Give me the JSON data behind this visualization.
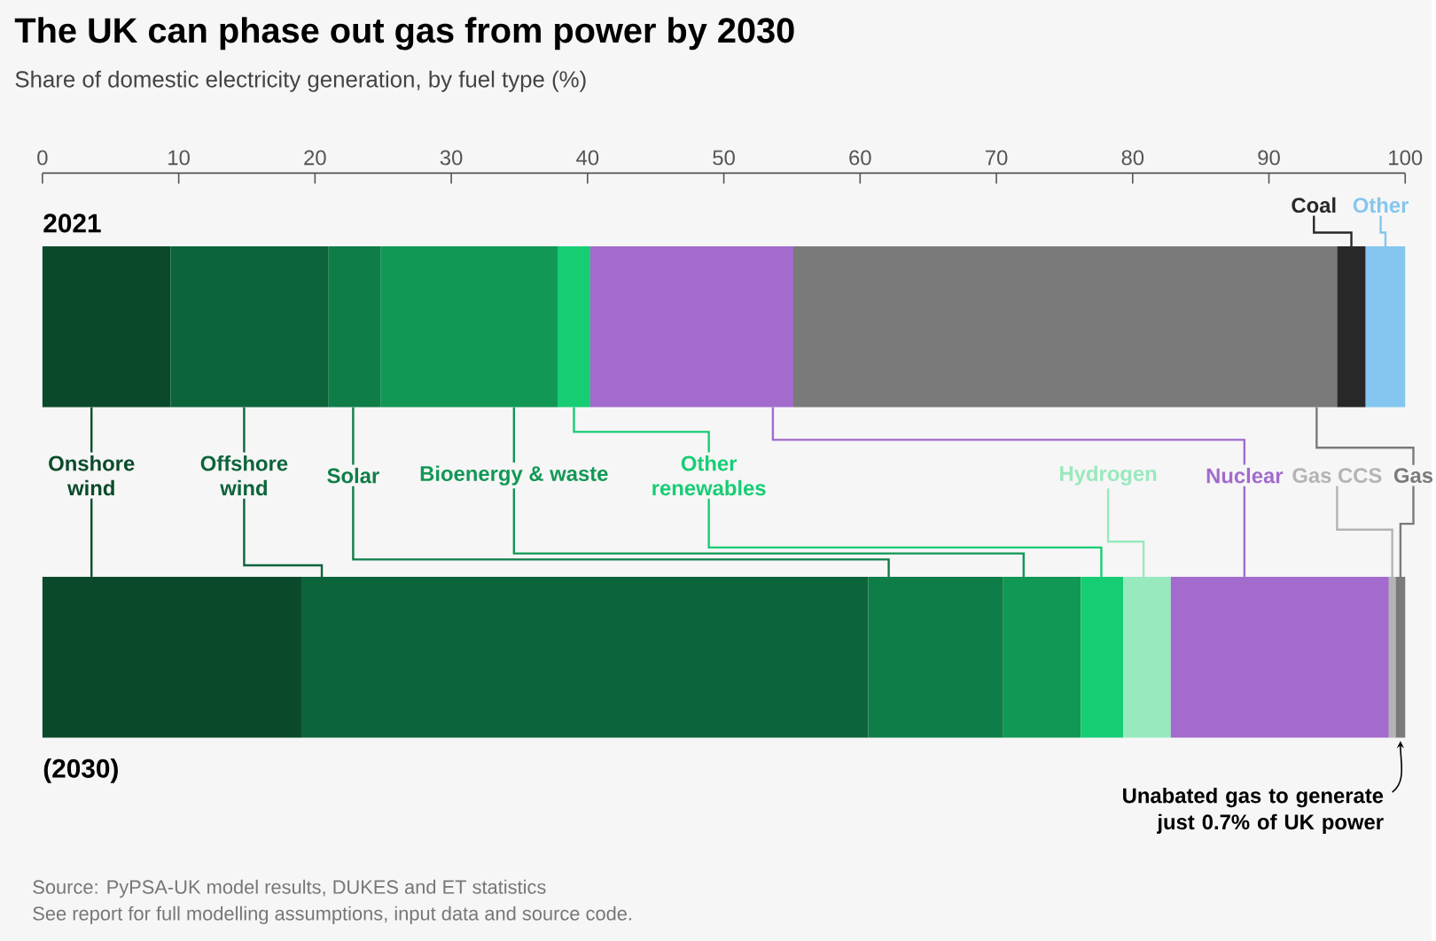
{
  "chart_data": {
    "type": "bar",
    "orientation": "horizontal",
    "stacked": true,
    "title": "The UK can phase out gas from power by 2030",
    "subtitle": "Share of domestic electricity generation, by fuel type (%)",
    "categories": [
      "2021",
      "(2030)"
    ],
    "legend": "center",
    "xlim": [
      0,
      100
    ],
    "xticks": [
      0,
      10,
      20,
      30,
      40,
      50,
      60,
      70,
      80,
      90,
      100
    ],
    "series": [
      {
        "name": "Onshore wind",
        "color": "#0a4a2a",
        "values": [
          9.4,
          19.0
        ]
      },
      {
        "name": "Offshore wind",
        "color": "#0c643a",
        "values": [
          11.6,
          41.6
        ]
      },
      {
        "name": "Solar",
        "color": "#0e7d48",
        "values": [
          3.8,
          9.9
        ]
      },
      {
        "name": "Bioenergy & waste",
        "color": "#119855",
        "values": [
          13.0,
          5.7
        ]
      },
      {
        "name": "Other renewables",
        "color": "#16cd74",
        "values": [
          2.4,
          3.1
        ]
      },
      {
        "name": "Hydrogen",
        "color": "#98e9bd",
        "values": [
          null,
          3.5
        ]
      },
      {
        "name": "Nuclear",
        "color": "#a26bcd",
        "values": [
          14.9,
          16.0
        ]
      },
      {
        "name": "Gas CCS",
        "color": "#b4b4b4",
        "values": [
          null,
          0.5
        ]
      },
      {
        "name": "Gas",
        "color": "#7a7a7a",
        "values": [
          39.9,
          0.7
        ]
      },
      {
        "name": "Coal",
        "color": "#282828",
        "values": [
          2.1,
          null
        ]
      },
      {
        "name": "Other",
        "color": "#84c6ef",
        "values": [
          2.9,
          null
        ]
      }
    ],
    "annotations": [
      "Unabated gas to generate just 0.7% of UK power",
      "Source: PyPSA-UK model results, DUKES and ET statistics",
      "See report for full modelling assumptions, input data and source code."
    ]
  }
}
